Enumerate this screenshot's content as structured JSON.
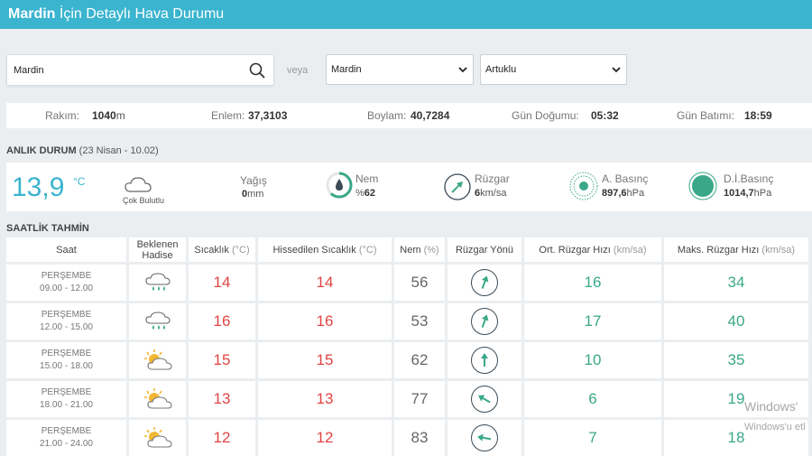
{
  "header": {
    "city": "Mardin",
    "title_rest": " İçin Detaylı Hava Durumu"
  },
  "search": {
    "value": "Mardin"
  },
  "veya": "veya",
  "province_select": {
    "value": "Mardin"
  },
  "district_select": {
    "value": "Artuklu"
  },
  "info": {
    "rakim_label": "Rakım:",
    "rakim_value": "1040",
    "rakim_unit": "m",
    "enlem_label": "Enlem:",
    "enlem_value": "37,3103",
    "boylam_label": "Boylam:",
    "boylam_value": "40,7284",
    "gundogumu_label": "Gün Doğumu:",
    "gundogumu_value": "05:32",
    "gunbatimi_label": "Gün Batımı:",
    "gunbatimi_value": "18:59"
  },
  "current": {
    "section_title": "ANLIK DURUM",
    "section_date": "(23 Nisan - 10.02)",
    "temp": "13,9",
    "temp_unit": "°C",
    "condition": "Çok Bulutlu",
    "yagis_label": "Yağış",
    "yagis_value": "0",
    "yagis_unit": "mm",
    "nem_label": "Nem",
    "nem_prefix": "%",
    "nem_value": "62",
    "ruzgar_label": "Rüzgar",
    "ruzgar_value": "6",
    "ruzgar_unit": "km/sa",
    "abasinc_label": "A. Basınç",
    "abasinc_value": "897,6",
    "abasinc_unit": "hPa",
    "dibasinc_label": "D.İ.Basınç",
    "dibasinc_value": "1014,7",
    "dibasinc_unit": "hPa",
    "colors": {
      "accent": "#3ab4cf",
      "green": "#3aa888"
    }
  },
  "hourly": {
    "section_title": "SAATLİK TAHMİN",
    "headers": {
      "saat": "Saat",
      "hadise": "Beklenen Hadise",
      "sicaklik": "Sıcaklık",
      "sicaklik_unit": "(°C)",
      "hissedilen": "Hissedilen Sıcaklık",
      "hissedilen_unit": "(°C)",
      "nem": "Nem",
      "nem_unit": "(%)",
      "yon": "Rüzgar Yönü",
      "ort": "Ort. Rüzgar Hızı",
      "ort_unit": "(km/sa)",
      "maks": "Maks. Rüzgar Hızı",
      "maks_unit": "(km/sa)"
    },
    "rows": [
      {
        "day": "PERŞEMBE",
        "time": "09.00 - 12.00",
        "icon": "rain-cloud-icon",
        "temp": "14",
        "feels": "14",
        "humidity": "56",
        "wind_dir_deg": 20,
        "avg": "16",
        "max": "34"
      },
      {
        "day": "PERŞEMBE",
        "time": "12.00 - 15.00",
        "icon": "rain-cloud-icon",
        "temp": "16",
        "feels": "16",
        "humidity": "53",
        "wind_dir_deg": 20,
        "avg": "17",
        "max": "40"
      },
      {
        "day": "PERŞEMBE",
        "time": "15.00 - 18.00",
        "icon": "partly-cloudy-icon",
        "temp": "15",
        "feels": "15",
        "humidity": "62",
        "wind_dir_deg": 0,
        "avg": "10",
        "max": "35"
      },
      {
        "day": "PERŞEMBE",
        "time": "18.00 - 21.00",
        "icon": "partly-cloudy-icon",
        "temp": "13",
        "feels": "13",
        "humidity": "77",
        "wind_dir_deg": -60,
        "avg": "6",
        "max": "19"
      },
      {
        "day": "PERŞEMBE",
        "time": "21.00 - 24.00",
        "icon": "partly-cloudy-icon",
        "temp": "12",
        "feels": "12",
        "humidity": "83",
        "wind_dir_deg": -80,
        "avg": "7",
        "max": "18"
      }
    ]
  },
  "watermark": {
    "line1": "Windows'",
    "line2": "Windows'u etl"
  }
}
